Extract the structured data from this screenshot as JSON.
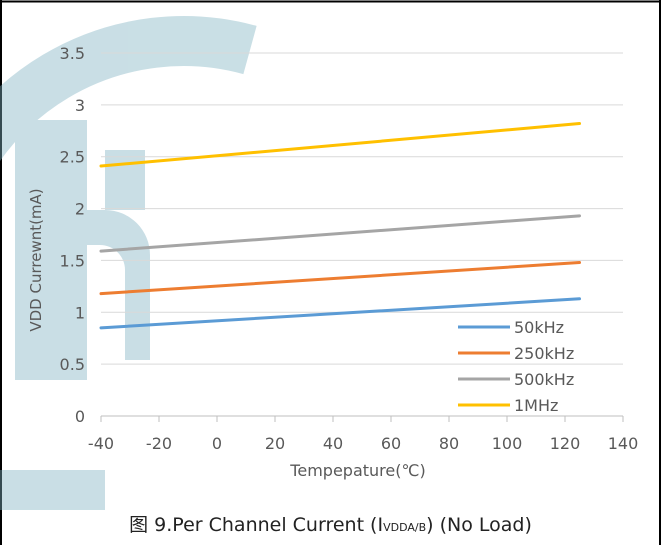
{
  "chart_data": {
    "type": "line",
    "xlabel": "Tempepature(℃)",
    "ylabel": "VDD Currewnt(mA)",
    "xlim": [
      -40,
      140
    ],
    "ylim": [
      0,
      3.5
    ],
    "xticks": [
      "-40",
      "-20",
      "0",
      "20",
      "40",
      "60",
      "80",
      "100",
      "120",
      "140"
    ],
    "yticks": [
      "0",
      "0.5",
      "1",
      "1.5",
      "2",
      "2.5",
      "3",
      "3.5"
    ],
    "grid": "horizontal",
    "legend_position": "bottom-right",
    "series": [
      {
        "name": "50kHz",
        "color": "#5b9bd5",
        "x": [
          -40,
          125
        ],
        "y": [
          0.85,
          1.13
        ]
      },
      {
        "name": "250kHz",
        "color": "#ed7d31",
        "x": [
          -40,
          125
        ],
        "y": [
          1.18,
          1.48
        ]
      },
      {
        "name": "500kHz",
        "color": "#a5a5a5",
        "x": [
          -40,
          125
        ],
        "y": [
          1.59,
          1.93
        ]
      },
      {
        "name": "1MHz",
        "color": "#ffc000",
        "x": [
          -40,
          125
        ],
        "y": [
          2.41,
          2.82
        ]
      }
    ]
  },
  "caption": {
    "prefix": "图 9.Per Channel Current (I",
    "subscript": "VDDA/B",
    "suffix": ") (No Load)"
  }
}
